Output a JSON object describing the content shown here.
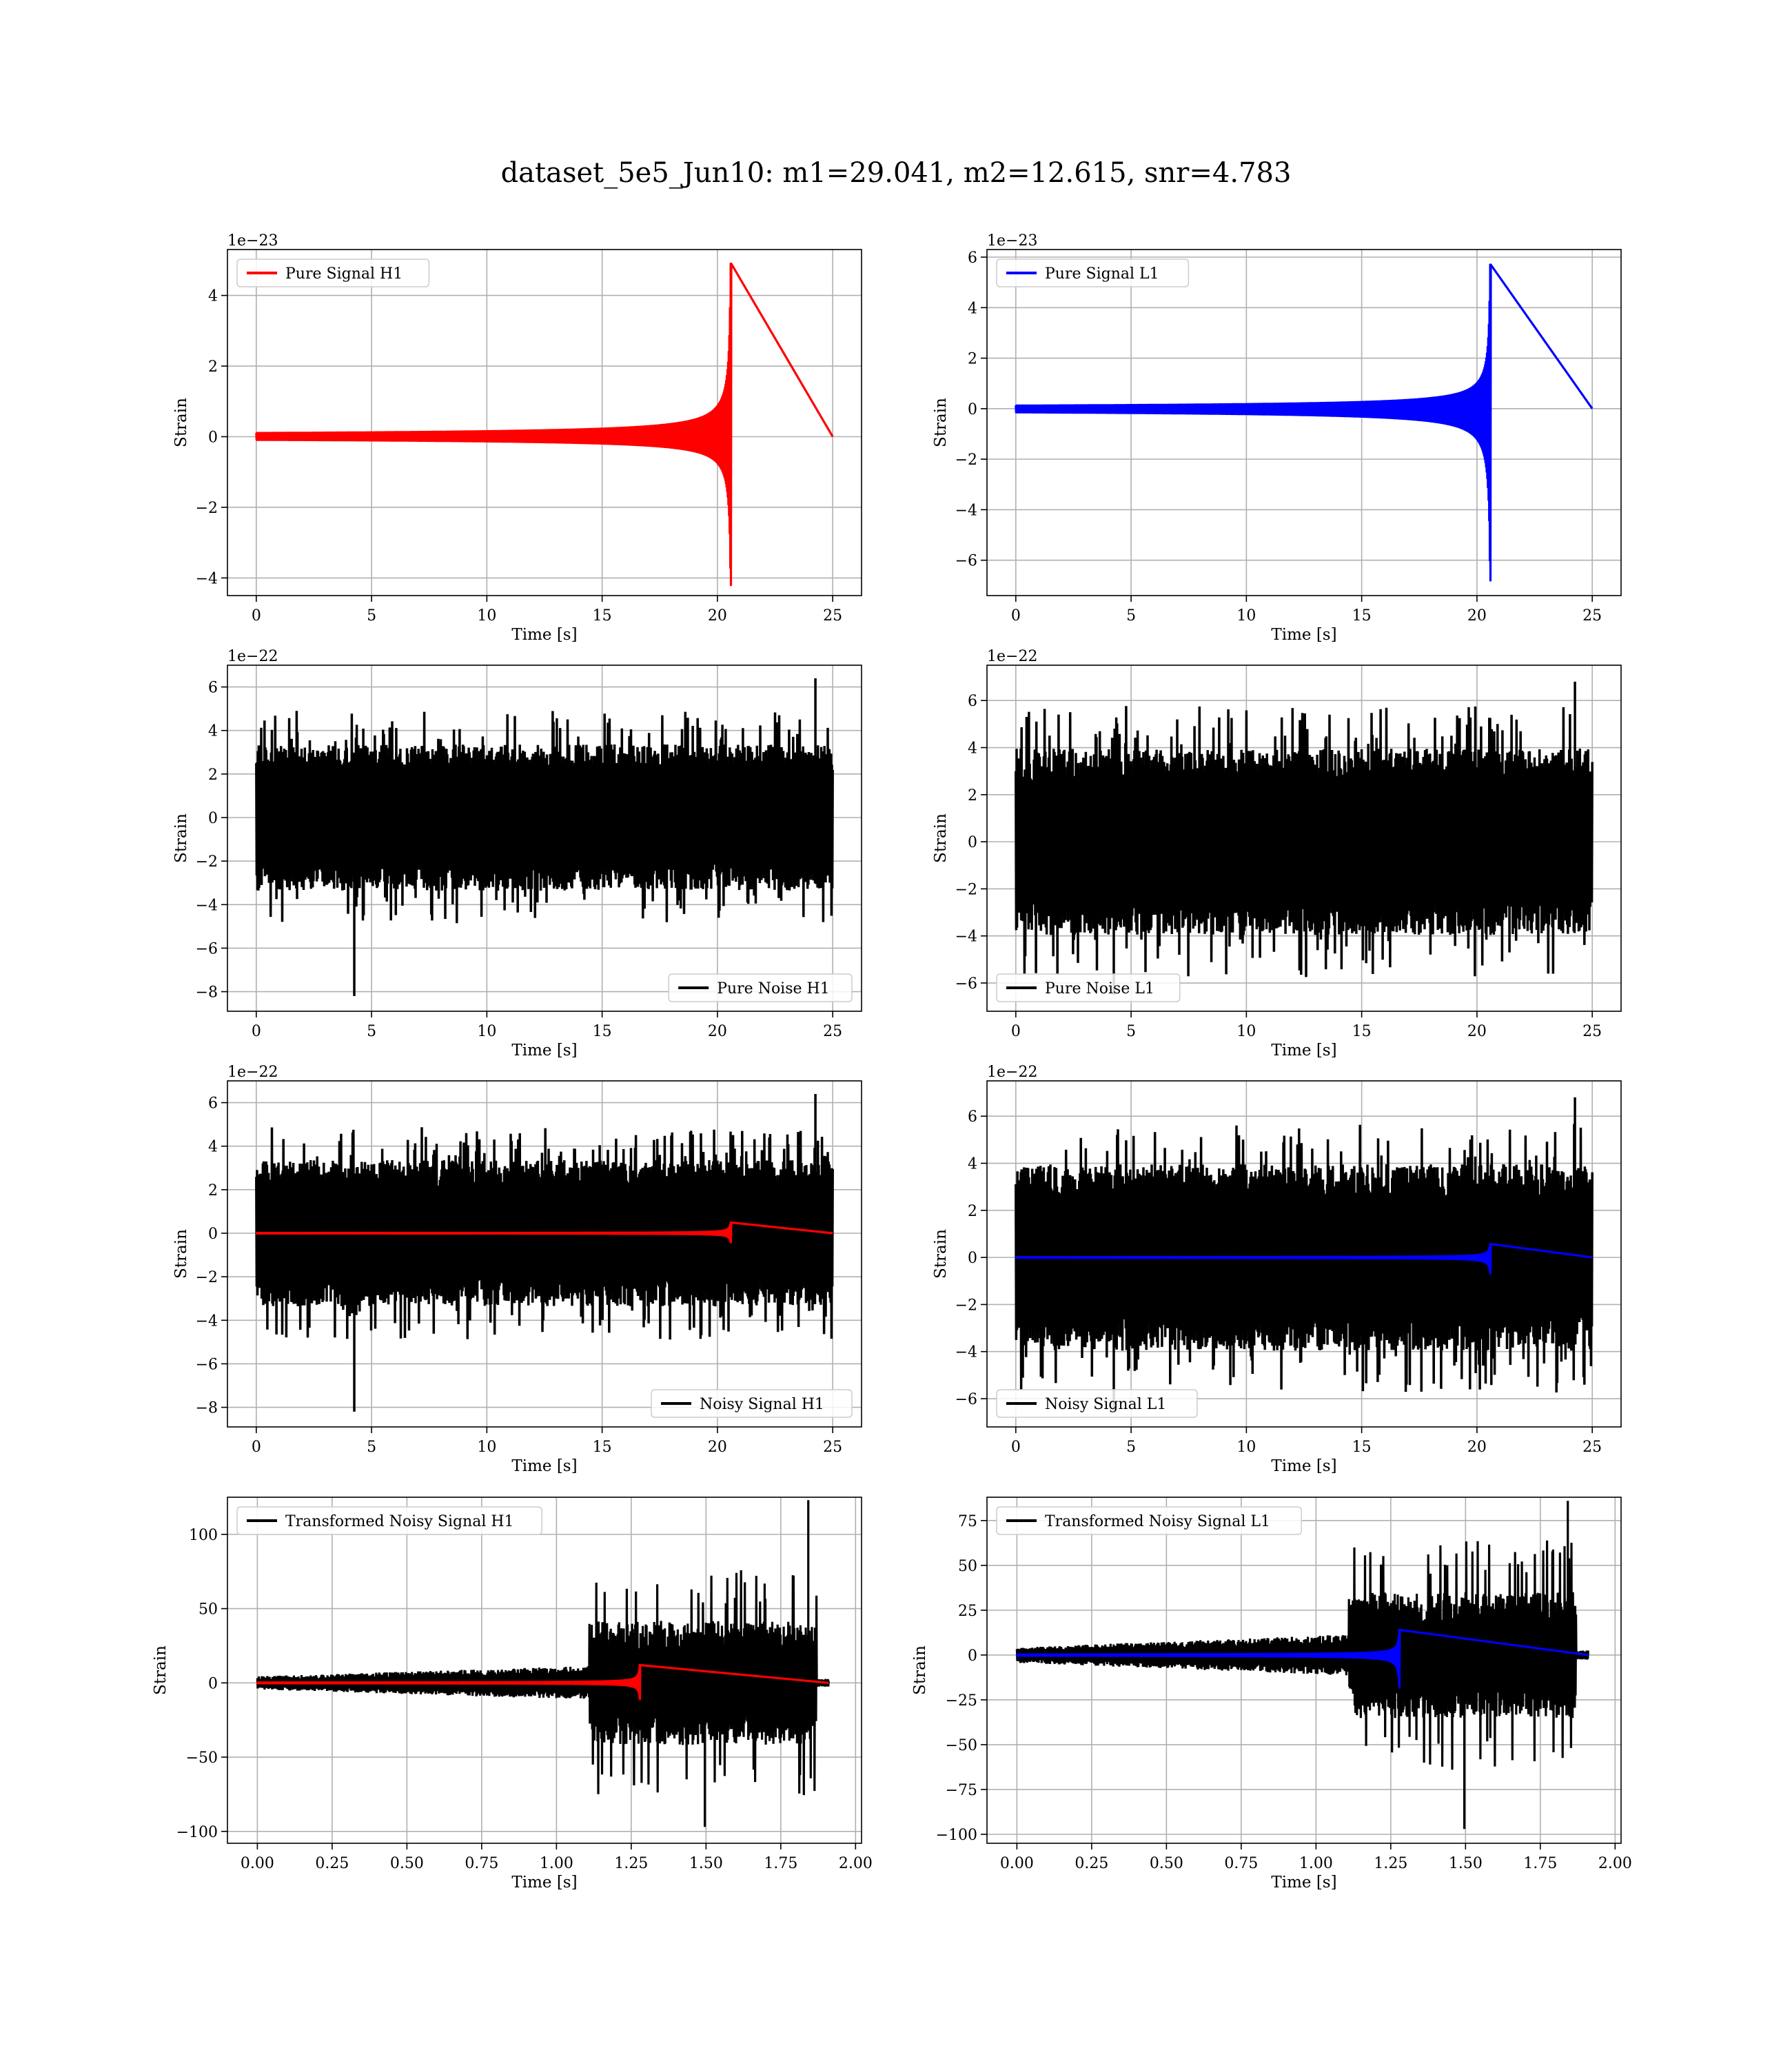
{
  "title": "dataset_5e5_Jun10: m1=29.041, m2=12.615, snr=4.783",
  "colors": {
    "h1_signal": "#ff0000",
    "l1_signal": "#0000ff",
    "noise": "#000000",
    "grid": "#b0b0b0"
  },
  "chart_data": [
    {
      "type": "line",
      "id": "pure-signal-h1",
      "xlabel": "Time [s]",
      "ylabel": "Strain",
      "offset_text": "1e−23",
      "xlim": [
        -1.25,
        26.25
      ],
      "ylim": [
        -4.5,
        5.3
      ],
      "xticks": [
        0,
        5,
        10,
        15,
        20,
        25
      ],
      "xtick_labels": [
        "0",
        "5",
        "10",
        "15",
        "20",
        "25"
      ],
      "yticks": [
        -4,
        -2,
        0,
        2,
        4
      ],
      "ytick_labels": [
        "−4",
        "−2",
        "0",
        "2",
        "4"
      ],
      "legend_placement": "upper-left",
      "grid": true,
      "series": [
        {
          "name": "Pure Signal H1",
          "color": "#ff0000",
          "kind": "chirp",
          "t_start": 0,
          "t_merge": 20.6,
          "t_end": 25,
          "amp_pos": 4.9,
          "amp_neg": 4.2
        }
      ]
    },
    {
      "type": "line",
      "id": "pure-signal-l1",
      "xlabel": "Time [s]",
      "ylabel": "Strain",
      "offset_text": "1e−23",
      "xlim": [
        -1.25,
        26.25
      ],
      "ylim": [
        -7.4,
        6.3
      ],
      "xticks": [
        0,
        5,
        10,
        15,
        20,
        25
      ],
      "xtick_labels": [
        "0",
        "5",
        "10",
        "15",
        "20",
        "25"
      ],
      "yticks": [
        -6,
        -4,
        -2,
        0,
        2,
        4,
        6
      ],
      "ytick_labels": [
        "−6",
        "−4",
        "−2",
        "0",
        "2",
        "4",
        "6"
      ],
      "legend_placement": "upper-left",
      "grid": true,
      "series": [
        {
          "name": "Pure Signal L1",
          "color": "#0000ff",
          "kind": "chirp",
          "t_start": 0,
          "t_merge": 20.6,
          "t_end": 25,
          "amp_pos": 5.7,
          "amp_neg": 6.8
        }
      ]
    },
    {
      "type": "line",
      "id": "pure-noise-h1",
      "xlabel": "Time [s]",
      "ylabel": "Strain",
      "offset_text": "1e−22",
      "xlim": [
        -1.25,
        26.25
      ],
      "ylim": [
        -8.9,
        7.0
      ],
      "xticks": [
        0,
        5,
        10,
        15,
        20,
        25
      ],
      "xtick_labels": [
        "0",
        "5",
        "10",
        "15",
        "20",
        "25"
      ],
      "yticks": [
        -8,
        -6,
        -4,
        -2,
        0,
        2,
        4,
        6
      ],
      "ytick_labels": [
        "−8",
        "−6",
        "−4",
        "−2",
        "0",
        "2",
        "4",
        "6"
      ],
      "legend_placement": "lower-right",
      "grid": true,
      "series": [
        {
          "name": "Pure Noise H1",
          "color": "#000000",
          "kind": "noise",
          "t_start": 0,
          "t_end": 25,
          "band": 2.8,
          "peak_max": 6.4,
          "peak_min": -8.2
        }
      ]
    },
    {
      "type": "line",
      "id": "pure-noise-l1",
      "xlabel": "Time [s]",
      "ylabel": "Strain",
      "offset_text": "1e−22",
      "xlim": [
        -1.25,
        26.25
      ],
      "ylim": [
        -7.2,
        7.5
      ],
      "xticks": [
        0,
        5,
        10,
        15,
        20,
        25
      ],
      "xtick_labels": [
        "0",
        "5",
        "10",
        "15",
        "20",
        "25"
      ],
      "yticks": [
        -6,
        -4,
        -2,
        0,
        2,
        4,
        6
      ],
      "ytick_labels": [
        "−6",
        "−4",
        "−2",
        "0",
        "2",
        "4",
        "6"
      ],
      "legend_placement": "lower-left",
      "grid": true,
      "series": [
        {
          "name": "Pure Noise L1",
          "color": "#000000",
          "kind": "noise",
          "t_start": 0,
          "t_end": 25,
          "band": 3.3,
          "peak_max": 6.8,
          "peak_min": -6.5
        }
      ]
    },
    {
      "type": "line",
      "id": "noisy-signal-h1",
      "xlabel": "Time [s]",
      "ylabel": "Strain",
      "offset_text": "1e−22",
      "xlim": [
        -1.25,
        26.25
      ],
      "ylim": [
        -8.9,
        7.0
      ],
      "xticks": [
        0,
        5,
        10,
        15,
        20,
        25
      ],
      "xtick_labels": [
        "0",
        "5",
        "10",
        "15",
        "20",
        "25"
      ],
      "yticks": [
        -8,
        -6,
        -4,
        -2,
        0,
        2,
        4,
        6
      ],
      "ytick_labels": [
        "−8",
        "−6",
        "−4",
        "−2",
        "0",
        "2",
        "4",
        "6"
      ],
      "legend_placement": "lower-right",
      "grid": true,
      "series": [
        {
          "name": "Noisy Signal H1",
          "color": "#000000",
          "kind": "noise",
          "t_start": 0,
          "t_end": 25,
          "band": 2.8,
          "peak_max": 6.4,
          "peak_min": -8.2
        },
        {
          "color": "#ff0000",
          "kind": "chirp",
          "t_start": 0,
          "t_merge": 20.6,
          "t_end": 25,
          "amp_pos": 0.49,
          "amp_neg": 0.42
        }
      ]
    },
    {
      "type": "line",
      "id": "noisy-signal-l1",
      "xlabel": "Time [s]",
      "ylabel": "Strain",
      "offset_text": "1e−22",
      "xlim": [
        -1.25,
        26.25
      ],
      "ylim": [
        -7.2,
        7.5
      ],
      "xticks": [
        0,
        5,
        10,
        15,
        20,
        25
      ],
      "xtick_labels": [
        "0",
        "5",
        "10",
        "15",
        "20",
        "25"
      ],
      "yticks": [
        -6,
        -4,
        -2,
        0,
        2,
        4,
        6
      ],
      "ytick_labels": [
        "−6",
        "−4",
        "−2",
        "0",
        "2",
        "4",
        "6"
      ],
      "legend_placement": "lower-left",
      "grid": true,
      "series": [
        {
          "name": "Noisy Signal L1",
          "color": "#000000",
          "kind": "noise",
          "t_start": 0,
          "t_end": 25,
          "band": 3.3,
          "peak_max": 6.8,
          "peak_min": -6.5
        },
        {
          "color": "#0000ff",
          "kind": "chirp",
          "t_start": 0,
          "t_merge": 20.6,
          "t_end": 25,
          "amp_pos": 0.57,
          "amp_neg": 0.68
        }
      ]
    },
    {
      "type": "line",
      "id": "transformed-h1",
      "xlabel": "Time [s]",
      "ylabel": "Strain",
      "offset_text": "",
      "xlim": [
        -0.1,
        2.02
      ],
      "ylim": [
        -108,
        125
      ],
      "xticks": [
        0,
        0.25,
        0.5,
        0.75,
        1.0,
        1.25,
        1.5,
        1.75,
        2.0
      ],
      "xtick_labels": [
        "0.00",
        "0.25",
        "0.50",
        "0.75",
        "1.00",
        "1.25",
        "1.50",
        "1.75",
        "2.00"
      ],
      "yticks": [
        -100,
        -50,
        0,
        50,
        100
      ],
      "ytick_labels": [
        "−100",
        "−50",
        "0",
        "50",
        "100"
      ],
      "legend_placement": "upper-left",
      "grid": true,
      "series": [
        {
          "name": "Transformed Noisy Signal H1",
          "color": "#000000",
          "kind": "tnoise",
          "t_start": 0,
          "t_jump": 1.11,
          "t_stop": 1.87,
          "t_end": 1.91,
          "band_low": 4,
          "band_high": 38,
          "peak_max": 123,
          "peak_min": -97
        },
        {
          "color": "#ff0000",
          "kind": "chirp",
          "t_start": 0,
          "t_merge": 1.28,
          "t_end": 1.91,
          "amp_pos": 12,
          "amp_neg": 11
        }
      ]
    },
    {
      "type": "line",
      "id": "transformed-l1",
      "xlabel": "Time [s]",
      "ylabel": "Strain",
      "offset_text": "",
      "xlim": [
        -0.1,
        2.02
      ],
      "ylim": [
        -105,
        88
      ],
      "xticks": [
        0,
        0.25,
        0.5,
        0.75,
        1.0,
        1.25,
        1.5,
        1.75,
        2.0
      ],
      "xtick_labels": [
        "0.00",
        "0.25",
        "0.50",
        "0.75",
        "1.00",
        "1.25",
        "1.50",
        "1.75",
        "2.00"
      ],
      "yticks": [
        -100,
        -75,
        -50,
        -25,
        0,
        25,
        50,
        75
      ],
      "ytick_labels": [
        "−100",
        "−75",
        "−50",
        "−25",
        "0",
        "25",
        "50",
        "75"
      ],
      "legend_placement": "upper-left",
      "grid": true,
      "series": [
        {
          "name": "Transformed Noisy Signal L1",
          "color": "#000000",
          "kind": "tnoise",
          "t_start": 0,
          "t_jump": 1.11,
          "t_stop": 1.87,
          "t_end": 1.91,
          "band_low": 4,
          "band_high": 32,
          "peak_max": 86,
          "peak_min": -97
        },
        {
          "color": "#0000ff",
          "kind": "chirp",
          "t_start": 0,
          "t_merge": 1.28,
          "t_end": 1.91,
          "amp_pos": 14,
          "amp_neg": 18
        }
      ]
    }
  ]
}
